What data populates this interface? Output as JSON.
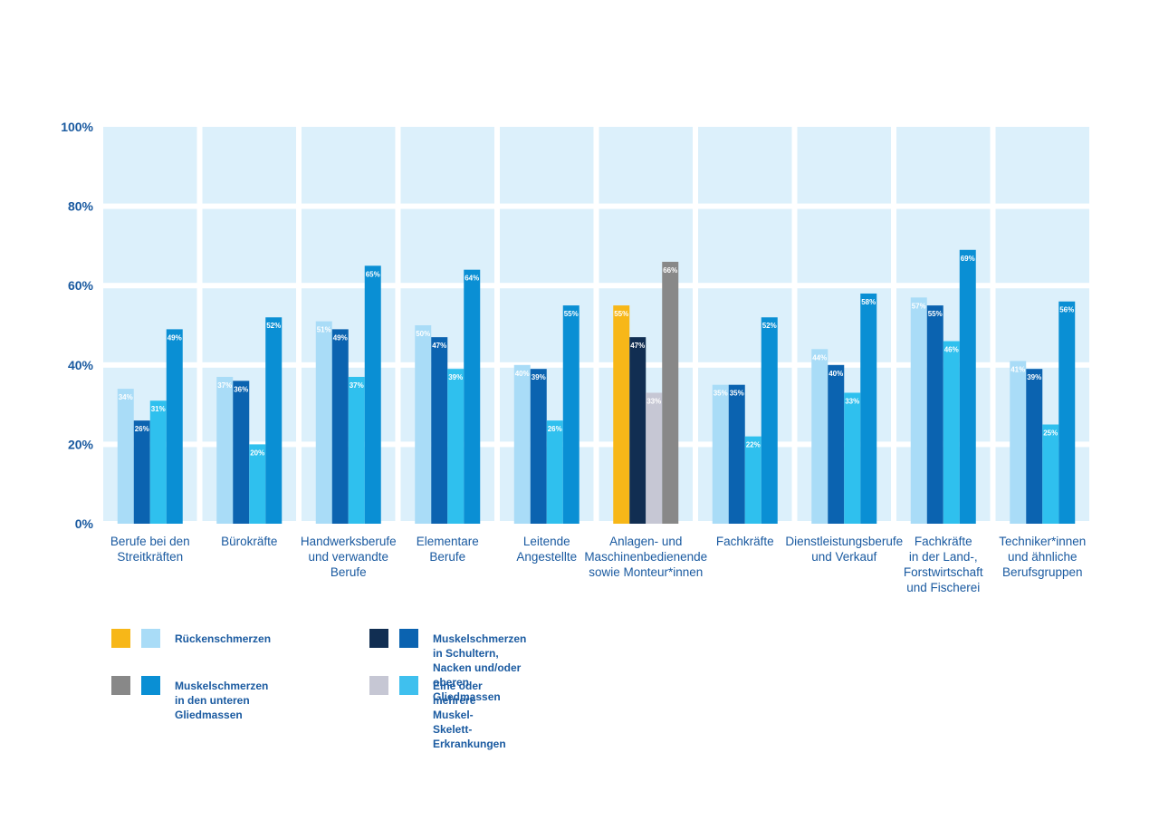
{
  "chart_data": {
    "type": "bar",
    "ylim": [
      0,
      100
    ],
    "yticks": [
      "0%",
      "20%",
      "40%",
      "60%",
      "80%",
      "100%"
    ],
    "grid": true,
    "legend_position": "bottom",
    "categories": [
      {
        "lines": [
          "Berufe bei den",
          "Streitkräften"
        ]
      },
      {
        "lines": [
          "Bürokräfte"
        ]
      },
      {
        "lines": [
          "Handwerksberufe",
          "und verwandte",
          "Berufe"
        ]
      },
      {
        "lines": [
          "Elementare",
          "Berufe"
        ]
      },
      {
        "lines": [
          "Leitende",
          "Angestellte"
        ]
      },
      {
        "lines": [
          "Anlagen- und",
          "Maschinenbedienende",
          "sowie Monteur*innen"
        ]
      },
      {
        "lines": [
          "Fachkräfte"
        ]
      },
      {
        "lines": [
          "Dienstleistungsberufe",
          "und Verkauf"
        ]
      },
      {
        "lines": [
          "Fachkräfte",
          "in der Land-,",
          "Forstwirtschaft",
          "und Fischerei"
        ]
      },
      {
        "lines": [
          "Techniker*innen",
          "und ähnliche",
          "Berufsgruppen"
        ]
      }
    ],
    "series": [
      {
        "name": "Rückenschmerzen",
        "values": [
          34,
          37,
          51,
          50,
          40,
          55,
          35,
          44,
          57,
          41
        ]
      },
      {
        "name": "Muskelschmerzen in Schultern, Nacken und/oder oberen Gliedmassen",
        "values": [
          26,
          36,
          49,
          47,
          39,
          47,
          35,
          40,
          55,
          39
        ]
      },
      {
        "name": "Eine oder mehrere Muskel-Skelett-Erkrankungen",
        "values": [
          31,
          20,
          37,
          39,
          26,
          33,
          22,
          33,
          46,
          25
        ]
      },
      {
        "name": "Muskelschmerzen in den unteren Gliedmassen",
        "values": [
          49,
          52,
          65,
          64,
          55,
          66,
          52,
          58,
          69,
          56
        ]
      }
    ],
    "data_labels": [
      [
        "34%",
        "37%",
        "51%",
        "50%",
        "40%",
        "55%",
        "35%",
        "44%",
        "57%",
        "41%"
      ],
      [
        "26%",
        "36%",
        "49%",
        "47%",
        "39%",
        "47%",
        "35%",
        "40%",
        "55%",
        "39%"
      ],
      [
        "31%",
        "20%",
        "37%",
        "39%",
        "26%",
        "33%",
        "22%",
        "33%",
        "46%",
        "25%"
      ],
      [
        "49%",
        "52%",
        "65%",
        "64%",
        "55%",
        "66%",
        "52%",
        "58%",
        "69%",
        "56%"
      ]
    ],
    "highlight_category": 5,
    "colors": {
      "default": [
        "#a9dcf7",
        "#0b63b0",
        "#2fc0ee",
        "#0a8fd4"
      ],
      "highlight": [
        "#f7b718",
        "#112e52",
        "#c6c7d4",
        "#888888"
      ],
      "grid_background": "#dcf0fb",
      "tick_text": "#1a5aa0"
    },
    "legend": [
      {
        "label": "Rückenschmerzen",
        "colors": [
          "#f7b718",
          "#a9dcf7"
        ]
      },
      {
        "label": "Muskelschmerzen in Schultern, Nacken und/oder oberen Gliedmassen",
        "lines": [
          "Muskelschmerzen in Schultern, Nacken und/oder",
          "oberen Gliedmassen"
        ],
        "colors": [
          "#112e52",
          "#0b63b0"
        ]
      },
      {
        "label": "Muskelschmerzen in den unteren Gliedmassen",
        "lines": [
          "Muskelschmerzen in den unteren",
          "Gliedmassen"
        ],
        "colors": [
          "#888888",
          "#0a8fd4"
        ]
      },
      {
        "label": "Eine oder mehrere Muskel-Skelett-Erkrankungen",
        "lines": [
          "Eine oder mehrere Muskel-Skelett-",
          "Erkrankungen"
        ],
        "colors": [
          "#c6c7d4",
          "#3fc0ee"
        ]
      }
    ]
  }
}
